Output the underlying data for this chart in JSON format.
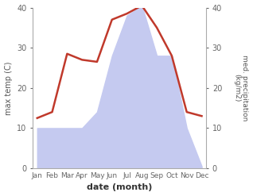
{
  "months": [
    "Jan",
    "Feb",
    "Mar",
    "Apr",
    "May",
    "Jun",
    "Jul",
    "Aug",
    "Sep",
    "Oct",
    "Nov",
    "Dec"
  ],
  "temp": [
    12.5,
    14.0,
    28.5,
    27.0,
    26.5,
    37.0,
    38.5,
    40.5,
    35.0,
    28.0,
    14.0,
    13.0
  ],
  "precip": [
    10.0,
    10.0,
    10.0,
    10.0,
    14.0,
    28.0,
    38.0,
    40.5,
    28.0,
    28.0,
    10.0,
    0.5
  ],
  "temp_color": "#c0392b",
  "precip_color": "#c5caf0",
  "ylim": [
    0,
    40
  ],
  "ylabel_left": "max temp (C)",
  "ylabel_right": "med. precipitation\n(kg/m2)",
  "xlabel": "date (month)",
  "bg_color": "#ffffff",
  "spine_color": "#aaaaaa",
  "tick_color": "#666666",
  "label_color": "#555555"
}
